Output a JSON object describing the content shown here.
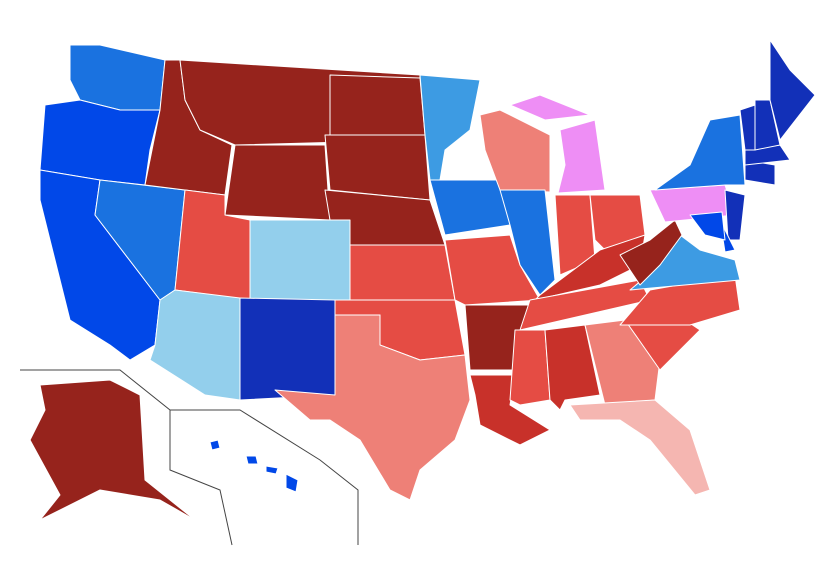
{
  "map": {
    "categories": {
      "dark_red": "#96231c",
      "red": "#c8312a",
      "mid_red": "#e54c44",
      "light_red": "#ee8077",
      "pale_red": "#f5b6b1",
      "pink": "#ee8ef5",
      "light_blue": "#93cfec",
      "mid_blue": "#3d9be3",
      "blue": "#1a72e0",
      "bright_blue": "#0148e8",
      "dark_blue": "#1230b8"
    },
    "states": [
      {
        "id": "WA",
        "category": "blue"
      },
      {
        "id": "OR",
        "category": "bright_blue"
      },
      {
        "id": "CA",
        "category": "bright_blue"
      },
      {
        "id": "NV",
        "category": "blue"
      },
      {
        "id": "ID",
        "category": "dark_red"
      },
      {
        "id": "MT",
        "category": "dark_red"
      },
      {
        "id": "WY",
        "category": "dark_red"
      },
      {
        "id": "UT",
        "category": "mid_red"
      },
      {
        "id": "CO",
        "category": "light_blue"
      },
      {
        "id": "AZ",
        "category": "light_blue"
      },
      {
        "id": "NM",
        "category": "dark_blue"
      },
      {
        "id": "ND",
        "category": "dark_red"
      },
      {
        "id": "SD",
        "category": "dark_red"
      },
      {
        "id": "NE",
        "category": "dark_red"
      },
      {
        "id": "KS",
        "category": "mid_red"
      },
      {
        "id": "OK",
        "category": "mid_red"
      },
      {
        "id": "TX",
        "category": "light_red"
      },
      {
        "id": "MN",
        "category": "mid_blue"
      },
      {
        "id": "IA",
        "category": "blue"
      },
      {
        "id": "MO",
        "category": "mid_red"
      },
      {
        "id": "AR",
        "category": "dark_red"
      },
      {
        "id": "LA",
        "category": "red"
      },
      {
        "id": "WI",
        "category": "light_red"
      },
      {
        "id": "IL",
        "category": "blue"
      },
      {
        "id": "MI",
        "category": "pink"
      },
      {
        "id": "IN",
        "category": "mid_red"
      },
      {
        "id": "OH",
        "category": "mid_red"
      },
      {
        "id": "KY",
        "category": "red"
      },
      {
        "id": "TN",
        "category": "mid_red"
      },
      {
        "id": "MS",
        "category": "mid_red"
      },
      {
        "id": "AL",
        "category": "red"
      },
      {
        "id": "GA",
        "category": "light_red"
      },
      {
        "id": "FL",
        "category": "pale_red"
      },
      {
        "id": "SC",
        "category": "mid_red"
      },
      {
        "id": "NC",
        "category": "mid_red"
      },
      {
        "id": "VA",
        "category": "mid_blue"
      },
      {
        "id": "WV",
        "category": "dark_red"
      },
      {
        "id": "PA",
        "category": "pink"
      },
      {
        "id": "NY",
        "category": "blue"
      },
      {
        "id": "NJ",
        "category": "dark_blue"
      },
      {
        "id": "DE",
        "category": "bright_blue"
      },
      {
        "id": "MD",
        "category": "bright_blue"
      },
      {
        "id": "CT",
        "category": "dark_blue"
      },
      {
        "id": "MA",
        "category": "dark_blue"
      },
      {
        "id": "VT",
        "category": "dark_blue"
      },
      {
        "id": "NH",
        "category": "dark_blue"
      },
      {
        "id": "ME",
        "category": "dark_blue"
      },
      {
        "id": "AK",
        "category": "dark_red"
      },
      {
        "id": "HI",
        "category": "bright_blue"
      }
    ]
  }
}
